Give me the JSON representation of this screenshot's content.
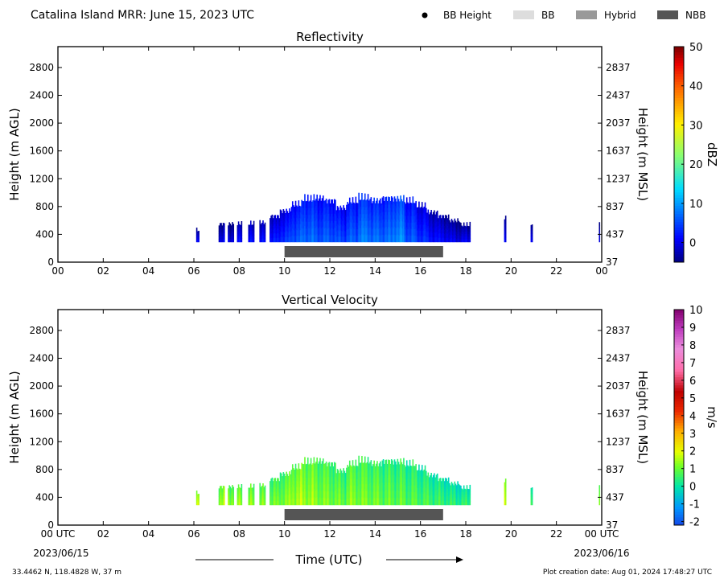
{
  "header": {
    "title": "Catalina Island MRR:  June 15, 2023 UTC",
    "legend": [
      {
        "label": "BB Height",
        "marker": "dot",
        "color": "#000000"
      },
      {
        "label": "BB",
        "marker": "box",
        "color": "#dddddd"
      },
      {
        "label": "Hybrid",
        "marker": "box",
        "color": "#999999"
      },
      {
        "label": "NBB",
        "marker": "box",
        "color": "#555555"
      }
    ]
  },
  "footer": {
    "location": "33.4462 N, 118.4828 W, 37 m",
    "created": "Plot creation date: Aug 01, 2024 17:48:27 UTC",
    "xlabel": "Time (UTC)",
    "date_left": "2023/06/15",
    "date_right": "2023/06/16"
  },
  "chart_data": [
    {
      "type": "heatmap",
      "title": "Reflectivity",
      "ylabel": "Height (m AGL)",
      "ylabel_right": "Height (m MSL)",
      "xlim": [
        0,
        24
      ],
      "ylim": [
        0,
        3100
      ],
      "xticks": [
        "00",
        "02",
        "04",
        "06",
        "08",
        "10",
        "12",
        "14",
        "16",
        "18",
        "20",
        "22",
        "00"
      ],
      "yticks": [
        0,
        400,
        800,
        1200,
        1600,
        2000,
        2400,
        2800
      ],
      "yticks_right": [
        37,
        437,
        837,
        1237,
        1637,
        2037,
        2437,
        2837
      ],
      "colorbar": {
        "label": "dBZ",
        "min": -5,
        "max": 50,
        "ticks": [
          0,
          10,
          20,
          30,
          40,
          50
        ],
        "colormap": "jet"
      },
      "band": {
        "type": "NBB",
        "start_hour": 10.0,
        "end_hour": 17.0,
        "color": "#555555"
      },
      "echo_base_m": 290,
      "echo_tops": [
        {
          "hour": 6.1,
          "top_m": 500,
          "value": 0
        },
        {
          "hour": 7.2,
          "top_m": 600,
          "value": 0
        },
        {
          "hour": 7.6,
          "top_m": 600,
          "value": 0
        },
        {
          "hour": 8.0,
          "top_m": 600,
          "value": 1
        },
        {
          "hour": 8.5,
          "top_m": 600,
          "value": 1
        },
        {
          "hour": 9.0,
          "top_m": 620,
          "value": 1
        },
        {
          "hour": 9.5,
          "top_m": 720,
          "value": 2
        },
        {
          "hour": 10.0,
          "top_m": 800,
          "value": 4
        },
        {
          "hour": 10.5,
          "top_m": 900,
          "value": 6
        },
        {
          "hour": 11.0,
          "top_m": 980,
          "value": 7
        },
        {
          "hour": 11.5,
          "top_m": 1000,
          "value": 6
        },
        {
          "hour": 12.0,
          "top_m": 960,
          "value": 6
        },
        {
          "hour": 12.5,
          "top_m": 850,
          "value": 5
        },
        {
          "hour": 13.0,
          "top_m": 950,
          "value": 6
        },
        {
          "hour": 13.5,
          "top_m": 1000,
          "value": 8
        },
        {
          "hour": 14.0,
          "top_m": 960,
          "value": 7
        },
        {
          "hour": 14.5,
          "top_m": 1000,
          "value": 7
        },
        {
          "hour": 15.0,
          "top_m": 990,
          "value": 9
        },
        {
          "hour": 15.5,
          "top_m": 950,
          "value": 6
        },
        {
          "hour": 16.0,
          "top_m": 880,
          "value": 4
        },
        {
          "hour": 16.5,
          "top_m": 780,
          "value": 2
        },
        {
          "hour": 17.0,
          "top_m": 720,
          "value": 1
        },
        {
          "hour": 17.5,
          "top_m": 650,
          "value": 0
        },
        {
          "hour": 18.0,
          "top_m": 580,
          "value": 0
        },
        {
          "hour": 19.7,
          "top_m": 700,
          "value": 0
        },
        {
          "hour": 20.9,
          "top_m": 600,
          "value": 0
        },
        {
          "hour": 23.9,
          "top_m": 600,
          "value": 0
        }
      ]
    },
    {
      "type": "heatmap",
      "title": "Vertical Velocity",
      "ylabel": "Height (m AGL)",
      "ylabel_right": "Height (m MSL)",
      "xlim": [
        0,
        24
      ],
      "ylim": [
        0,
        3100
      ],
      "xticks": [
        "00 UTC",
        "02",
        "04",
        "06",
        "08",
        "10",
        "12",
        "14",
        "16",
        "18",
        "20",
        "22",
        "00 UTC"
      ],
      "yticks": [
        0,
        400,
        800,
        1200,
        1600,
        2000,
        2400,
        2800
      ],
      "yticks_right": [
        37,
        437,
        837,
        1237,
        1637,
        2037,
        2437,
        2837
      ],
      "colorbar": {
        "label": "m/s",
        "min": -2.2,
        "max": 10,
        "ticks": [
          -2,
          -1,
          0,
          1,
          2,
          3,
          4,
          5,
          6,
          7,
          8,
          9,
          10
        ],
        "colormap": "velocity"
      },
      "band": {
        "type": "NBB",
        "start_hour": 10.0,
        "end_hour": 17.0,
        "color": "#555555"
      },
      "echo_base_m": 290,
      "echo_tops": [
        {
          "hour": 6.1,
          "top_m": 500,
          "value": 1.6
        },
        {
          "hour": 7.2,
          "top_m": 600,
          "value": 1.5
        },
        {
          "hour": 7.6,
          "top_m": 600,
          "value": 1.4
        },
        {
          "hour": 8.0,
          "top_m": 600,
          "value": 1.3
        },
        {
          "hour": 8.5,
          "top_m": 600,
          "value": 1.2
        },
        {
          "hour": 9.0,
          "top_m": 620,
          "value": 1.1
        },
        {
          "hour": 9.5,
          "top_m": 720,
          "value": 1.0
        },
        {
          "hour": 10.0,
          "top_m": 800,
          "value": 1.2
        },
        {
          "hour": 10.5,
          "top_m": 900,
          "value": 1.5
        },
        {
          "hour": 11.0,
          "top_m": 980,
          "value": 1.4
        },
        {
          "hour": 11.5,
          "top_m": 1000,
          "value": 1.2
        },
        {
          "hour": 12.0,
          "top_m": 960,
          "value": 1.1
        },
        {
          "hour": 12.5,
          "top_m": 850,
          "value": 1.0
        },
        {
          "hour": 13.0,
          "top_m": 950,
          "value": 1.2
        },
        {
          "hour": 13.5,
          "top_m": 1000,
          "value": 1.1
        },
        {
          "hour": 14.0,
          "top_m": 960,
          "value": 1.0
        },
        {
          "hour": 14.5,
          "top_m": 1000,
          "value": 0.9
        },
        {
          "hour": 15.0,
          "top_m": 990,
          "value": 0.9
        },
        {
          "hour": 15.5,
          "top_m": 950,
          "value": 0.8
        },
        {
          "hour": 16.0,
          "top_m": 880,
          "value": 0.7
        },
        {
          "hour": 16.5,
          "top_m": 780,
          "value": 0.6
        },
        {
          "hour": 17.0,
          "top_m": 720,
          "value": 0.5
        },
        {
          "hour": 17.5,
          "top_m": 650,
          "value": 0.4
        },
        {
          "hour": 18.0,
          "top_m": 580,
          "value": 0.4
        },
        {
          "hour": 19.7,
          "top_m": 700,
          "value": 1.6
        },
        {
          "hour": 20.9,
          "top_m": 600,
          "value": 0.5
        },
        {
          "hour": 23.9,
          "top_m": 600,
          "value": 1.4
        }
      ]
    }
  ]
}
